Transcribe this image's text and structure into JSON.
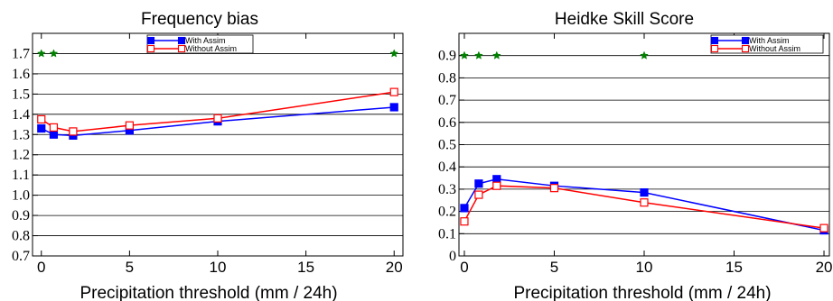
{
  "chart_data": [
    {
      "type": "line",
      "title": "Frequency bias",
      "xlabel": "Precipitation threshold (mm / 24h)",
      "ylabel": "",
      "xlim": [
        -0.5,
        20.5
      ],
      "ylim": [
        0.7,
        1.8
      ],
      "xticks": [
        0,
        5,
        10,
        15,
        20
      ],
      "xtick_labels": [
        "0",
        "5",
        "10",
        "15",
        "20"
      ],
      "yticks": [
        0.7,
        0.8,
        0.9,
        1.0,
        1.1,
        1.2,
        1.3,
        1.4,
        1.5,
        1.6,
        1.7
      ],
      "ytick_labels": [
        "0.7",
        "0.8",
        "0.9",
        "1.0",
        "1.1",
        "1.2",
        "1.3",
        "1.4",
        "1.5",
        "1.6",
        "1.7"
      ],
      "grid": "horizontal",
      "legend": "top-center",
      "series": [
        {
          "name": "With Assim",
          "color": "#0000ff",
          "marker": "filled-square",
          "x": [
            0,
            0.7,
            1.8,
            5,
            10,
            20
          ],
          "y": [
            1.33,
            1.3,
            1.295,
            1.32,
            1.365,
            1.435
          ]
        },
        {
          "name": "Without Assim",
          "color": "#ff0000",
          "marker": "open-square",
          "x": [
            0,
            0.7,
            1.8,
            5,
            10,
            20
          ],
          "y": [
            1.375,
            1.335,
            1.315,
            1.345,
            1.38,
            1.51
          ]
        }
      ],
      "annotations": {
        "marker": "star",
        "color": "#008000",
        "x": [
          0,
          0.7,
          20
        ],
        "y": [
          1.7,
          1.7,
          1.7
        ]
      }
    },
    {
      "type": "line",
      "title": "Heidke Skill Score",
      "xlabel": "Precipitation threshold (mm / 24h)",
      "ylabel": "",
      "xlim": [
        -0.3,
        20.3
      ],
      "ylim": [
        0,
        1.0
      ],
      "xticks": [
        0,
        5,
        10,
        15,
        20
      ],
      "xtick_labels": [
        "0",
        "5",
        "10",
        "15",
        "20"
      ],
      "yticks": [
        0,
        0.1,
        0.2,
        0.3,
        0.4,
        0.5,
        0.6,
        0.7,
        0.8,
        0.9
      ],
      "ytick_labels": [
        "0",
        "0.1",
        "0.2",
        "0.3",
        "0.4",
        "0.5",
        "0.6",
        "0.7",
        "0.8",
        "0.9"
      ],
      "grid": "horizontal",
      "legend": "top-right",
      "series": [
        {
          "name": "With Assim",
          "color": "#0000ff",
          "marker": "filled-square",
          "x": [
            0,
            0.8,
            1.8,
            5,
            10,
            20
          ],
          "y": [
            0.215,
            0.325,
            0.345,
            0.315,
            0.285,
            0.115
          ]
        },
        {
          "name": "Without Assim",
          "color": "#ff0000",
          "marker": "open-square",
          "x": [
            0,
            0.8,
            1.8,
            5,
            10,
            20
          ],
          "y": [
            0.155,
            0.275,
            0.315,
            0.305,
            0.24,
            0.125
          ]
        }
      ],
      "annotations": {
        "marker": "star",
        "color": "#008000",
        "x": [
          0,
          0.8,
          1.8,
          10
        ],
        "y": [
          0.9,
          0.9,
          0.9,
          0.9
        ]
      }
    }
  ]
}
